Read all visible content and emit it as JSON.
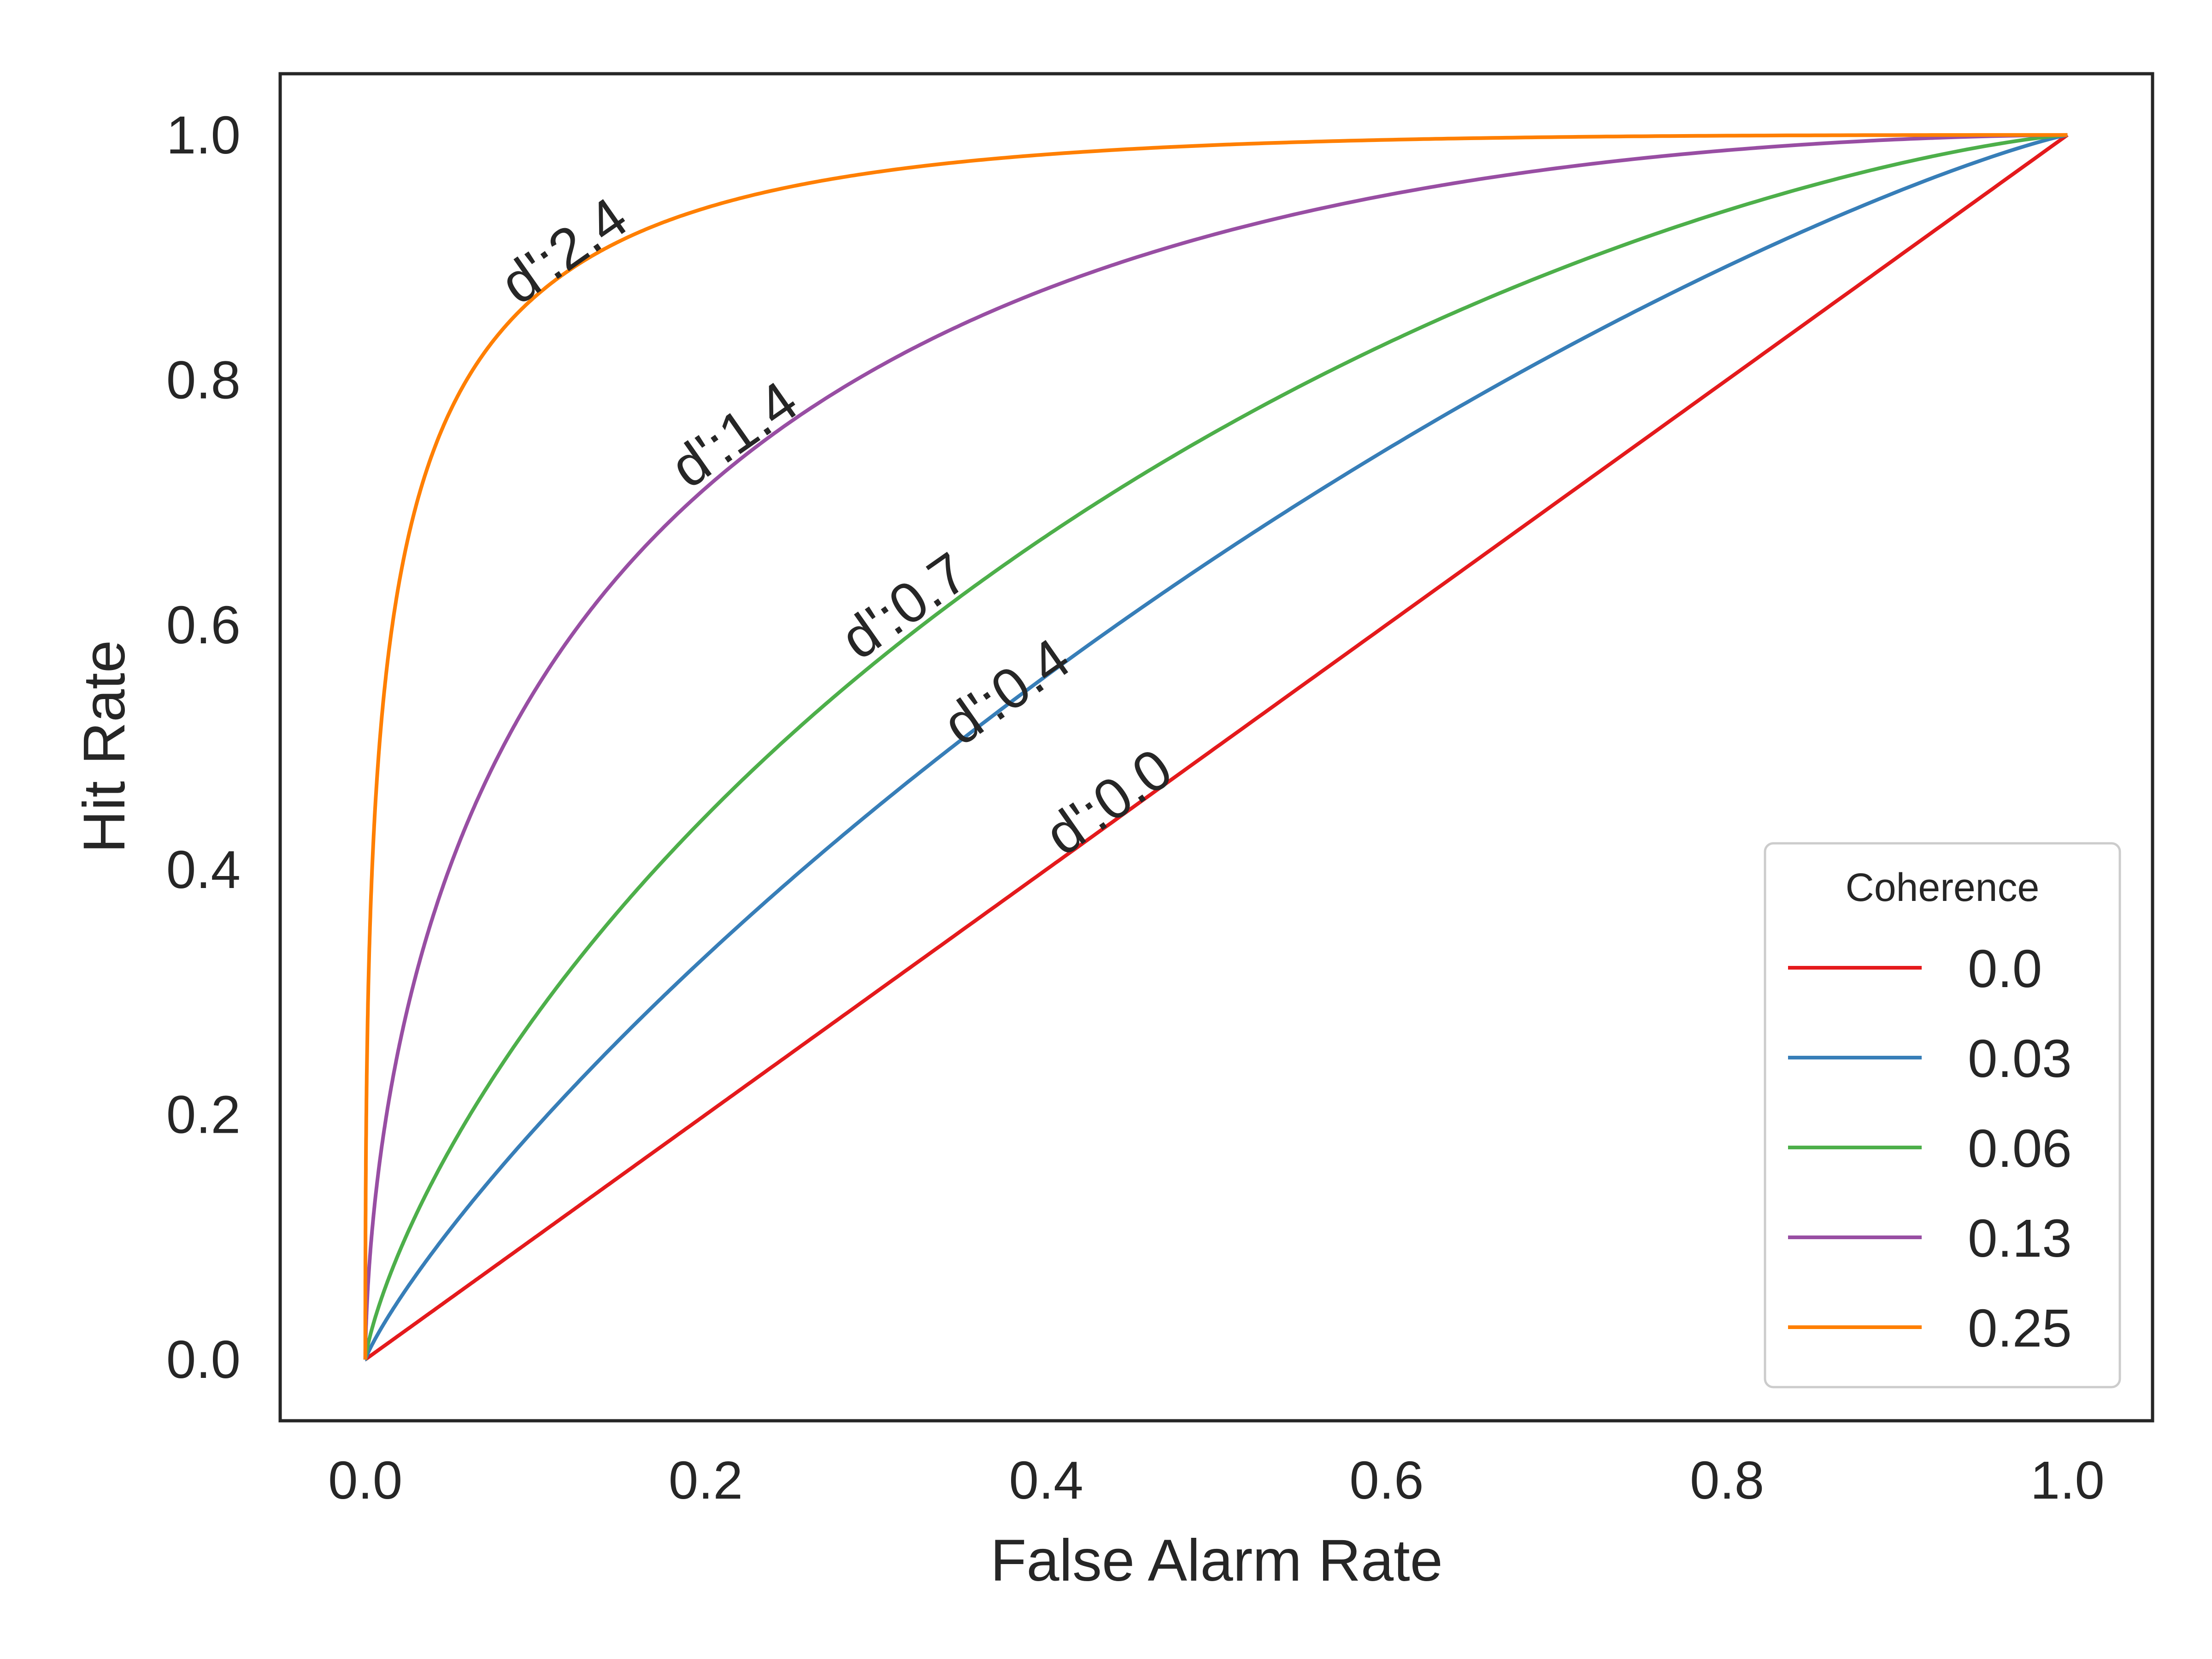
{
  "chart_data": {
    "type": "line",
    "xlabel": "False Alarm Rate",
    "ylabel": "Hit Rate",
    "xlim": [
      -0.05,
      1.05
    ],
    "ylim": [
      -0.05,
      1.05
    ],
    "xticks": [
      "0.0",
      "0.2",
      "0.4",
      "0.6",
      "0.8",
      "1.0"
    ],
    "yticks": [
      "0.0",
      "0.2",
      "0.4",
      "0.6",
      "0.8",
      "1.0"
    ],
    "grid": false,
    "legend": {
      "title": "Coherence",
      "placement": "bottom-right"
    },
    "series": [
      {
        "name": "0.0",
        "dprime": 0.0,
        "color": "#e41a1c",
        "annotation": "d':0.0",
        "label_at": {
          "x": 0.41,
          "y": 0.41
        },
        "x": [
          0,
          0.1,
          0.2,
          0.3,
          0.4,
          0.5,
          0.6,
          0.7,
          0.8,
          0.9,
          1.0
        ],
        "y": [
          0,
          0.1,
          0.2,
          0.3,
          0.4,
          0.5,
          0.6,
          0.7,
          0.8,
          0.9,
          1.0
        ]
      },
      {
        "name": "0.03",
        "dprime": 0.4,
        "color": "#377eb8",
        "annotation": "d':0.4",
        "label_at": {
          "x": 0.35,
          "y": 0.5
        },
        "x": [
          0,
          0.1,
          0.2,
          0.3,
          0.4,
          0.5,
          0.6,
          0.7,
          0.8,
          0.9,
          1.0
        ],
        "y": [
          0,
          0.19,
          0.33,
          0.45,
          0.56,
          0.65,
          0.74,
          0.82,
          0.89,
          0.95,
          1.0
        ]
      },
      {
        "name": "0.06",
        "dprime": 0.7,
        "color": "#4daf4a",
        "annotation": "d':0.7",
        "label_at": {
          "x": 0.29,
          "y": 0.57
        },
        "x": [
          0,
          0.1,
          0.2,
          0.3,
          0.4,
          0.5,
          0.6,
          0.7,
          0.8,
          0.9,
          1.0
        ],
        "y": [
          0,
          0.3,
          0.46,
          0.58,
          0.68,
          0.76,
          0.83,
          0.89,
          0.94,
          0.98,
          1.0
        ]
      },
      {
        "name": "0.13",
        "dprime": 1.4,
        "color": "#984ea3",
        "annotation": "d':1.4",
        "label_at": {
          "x": 0.19,
          "y": 0.71
        },
        "x": [
          0,
          0.1,
          0.2,
          0.3,
          0.4,
          0.5,
          0.6,
          0.7,
          0.8,
          0.9,
          1.0
        ],
        "y": [
          0,
          0.55,
          0.72,
          0.81,
          0.87,
          0.92,
          0.95,
          0.97,
          0.98,
          0.99,
          1.0
        ]
      },
      {
        "name": "0.25",
        "dprime": 2.4,
        "color": "#ff7f00",
        "annotation": "d':2.4",
        "label_at": {
          "x": 0.09,
          "y": 0.86
        },
        "x": [
          0,
          0.1,
          0.2,
          0.3,
          0.4,
          0.5,
          0.6,
          0.7,
          0.8,
          0.9,
          1.0
        ],
        "y": [
          0,
          0.87,
          0.94,
          0.97,
          0.98,
          0.99,
          0.995,
          0.997,
          0.999,
          0.9995,
          1.0
        ]
      }
    ]
  }
}
